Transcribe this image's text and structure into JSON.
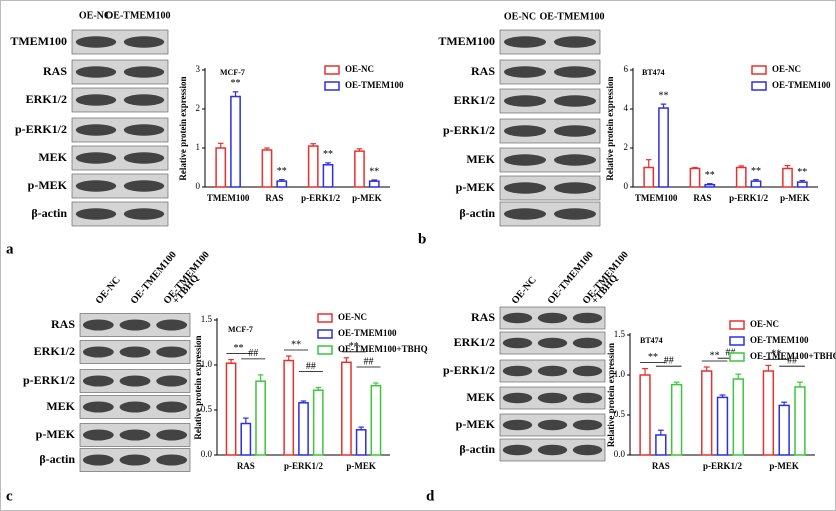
{
  "blots": [
    {
      "letter": "a",
      "columns": [
        [
          "OE-NC"
        ],
        [
          "OE-TMEM100"
        ]
      ],
      "rows": [
        "TMEM100",
        "RAS",
        "ERK1/2",
        "p-ERK1/2",
        "MEK",
        "p-MEK",
        "β-actin"
      ]
    },
    {
      "letter": "b",
      "columns": [
        [
          "OE-NC"
        ],
        [
          "OE-TMEM100"
        ]
      ],
      "rows": [
        "TMEM100",
        "RAS",
        "ERK1/2",
        "p-ERK1/2",
        "MEK",
        "p-MEK",
        "β-actin"
      ]
    },
    {
      "letter": "c",
      "columns": [
        [
          "OE-NC"
        ],
        [
          "OE-TMEM100"
        ],
        [
          "OE-TMEM100",
          "+TBHQ"
        ]
      ],
      "rows": [
        "RAS",
        "ERK1/2",
        "p-ERK1/2",
        "MEK",
        "p-MEK",
        "β-actin"
      ]
    },
    {
      "letter": "d",
      "columns": [
        [
          "OE-NC"
        ],
        [
          "OE-TMEM100"
        ],
        [
          "OE-TMEM100",
          "+TBHQ"
        ]
      ],
      "rows": [
        "RAS",
        "ERK1/2",
        "p-ERK1/2",
        "MEK",
        "p-MEK",
        "β-actin"
      ]
    }
  ],
  "chart_data": [
    {
      "type": "bar",
      "subtitle": "MCF-7",
      "y_label": "Relative protein expression",
      "categories": [
        "TMEM100",
        "RAS",
        "p-ERK1/2",
        "p-MEK"
      ],
      "series": [
        {
          "name": "OE-NC",
          "color": "#e8302e",
          "values": [
            1.0,
            0.95,
            1.05,
            0.92
          ],
          "errors": [
            0.12,
            0.05,
            0.06,
            0.06
          ]
        },
        {
          "name": "OE-TMEM100",
          "color": "#2b2fe0",
          "values": [
            2.32,
            0.15,
            0.57,
            0.15
          ],
          "errors": [
            0.12,
            0.04,
            0.05,
            0.03
          ],
          "sig": [
            "**",
            "**",
            "**",
            "**"
          ]
        }
      ],
      "ylim": [
        0,
        3
      ],
      "yticks": [
        0,
        1,
        2,
        3
      ],
      "brackets": false
    },
    {
      "type": "bar",
      "subtitle": "BT474",
      "y_label": "Relative protein expression",
      "categories": [
        "TMEM100",
        "RAS",
        "p-ERK1/2",
        "p-MEK"
      ],
      "series": [
        {
          "name": "OE-NC",
          "color": "#e8302e",
          "values": [
            1.0,
            0.95,
            1.0,
            0.95
          ],
          "errors": [
            0.4,
            0.05,
            0.08,
            0.15
          ]
        },
        {
          "name": "OE-TMEM100",
          "color": "#2b2fe0",
          "values": [
            4.05,
            0.12,
            0.3,
            0.25
          ],
          "errors": [
            0.2,
            0.05,
            0.08,
            0.08
          ],
          "sig": [
            "**",
            "**",
            "**",
            "**"
          ]
        }
      ],
      "ylim": [
        0,
        6
      ],
      "yticks": [
        0,
        2,
        4,
        6
      ],
      "brackets": false
    },
    {
      "type": "bar",
      "subtitle": "MCF-7",
      "y_label": "Relative protein expression",
      "categories": [
        "RAS",
        "p-ERK1/2",
        "p-MEK"
      ],
      "series": [
        {
          "name": "OE-NC",
          "color": "#e8302e",
          "values": [
            1.02,
            1.05,
            1.03
          ],
          "errors": [
            0.04,
            0.05,
            0.05
          ]
        },
        {
          "name": "OE-TMEM100",
          "color": "#2b2fe0",
          "values": [
            0.35,
            0.58,
            0.28
          ],
          "errors": [
            0.06,
            0.02,
            0.03
          ],
          "sig": [
            "**",
            "**",
            "**"
          ]
        },
        {
          "name": "OE-TMEM100+TBHQ",
          "color": "#3cc63c",
          "values": [
            0.82,
            0.72,
            0.77
          ],
          "errors": [
            0.07,
            0.03,
            0.03
          ],
          "sig": [
            "##",
            "##",
            "##"
          ]
        }
      ],
      "ylim": [
        0,
        1.5
      ],
      "yticks": [
        {
          "value": 0,
          "label": "0.0"
        },
        {
          "value": 0.5,
          "label": "0.5"
        },
        {
          "value": 1,
          "label": "1.0"
        },
        {
          "value": 1.5,
          "label": "1.5"
        }
      ],
      "brackets": true
    },
    {
      "type": "bar",
      "subtitle": "BT474",
      "y_label": "Relative protein expression",
      "categories": [
        "RAS",
        "p-ERK1/2",
        "p-MEK"
      ],
      "series": [
        {
          "name": "OE-NC",
          "color": "#e8302e",
          "values": [
            1.0,
            1.05,
            1.05
          ],
          "errors": [
            0.08,
            0.05,
            0.07
          ]
        },
        {
          "name": "OE-TMEM100",
          "color": "#2b2fe0",
          "values": [
            0.25,
            0.72,
            0.62
          ],
          "errors": [
            0.06,
            0.03,
            0.04
          ],
          "sig": [
            "**",
            "**",
            "**"
          ]
        },
        {
          "name": "OE-TMEM100+TBHQ",
          "color": "#3cc63c",
          "values": [
            0.88,
            0.95,
            0.85
          ],
          "errors": [
            0.03,
            0.06,
            0.06
          ],
          "sig": [
            "##",
            "##",
            "##"
          ]
        }
      ],
      "ylim": [
        0,
        1.5
      ],
      "yticks": [
        {
          "value": 0,
          "label": "0.0"
        },
        {
          "value": 0.5,
          "label": "0.5"
        },
        {
          "value": 1,
          "label": "1.0"
        },
        {
          "value": 1.5,
          "label": "1.5"
        }
      ],
      "brackets": true
    }
  ]
}
